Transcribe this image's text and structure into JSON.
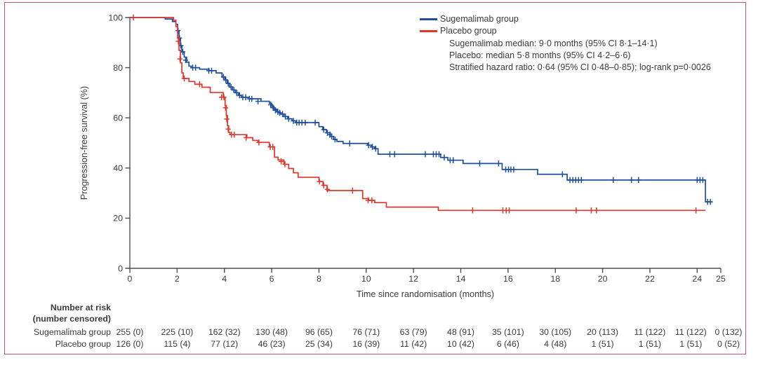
{
  "figure": {
    "border_color": "#c4576f",
    "background": "#ffffff",
    "text_color": "#3b3b3b",
    "axis_color": "#4f4f4f"
  },
  "chart_data": {
    "type": "line",
    "subtype": "kaplan_meier_step",
    "title": "",
    "xlabel": "Time since randomisation (months)",
    "ylabel": "Progression-free survival (%)",
    "xlim": [
      0,
      25
    ],
    "ylim": [
      0,
      100
    ],
    "x_ticks": [
      0,
      2,
      4,
      6,
      8,
      10,
      12,
      14,
      16,
      18,
      20,
      22,
      24,
      25
    ],
    "y_ticks": [
      0,
      20,
      40,
      60,
      80,
      100
    ],
    "grid": false,
    "legend_position": "top-right",
    "legend": [
      {
        "label": "Sugemalimab group",
        "color": "#1f4e9d"
      },
      {
        "label": "Placebo group",
        "color": "#e0372c"
      }
    ],
    "annotations": [
      "Sugemalimab median: 9·0 months (95% CI 8·1–14·1)",
      "Placebo: median 5·8 months (95% CI 4·2–6·6)",
      "Stratified hazard ratio: 0·64 (95% CI 0·48–0·85); log-rank p=0·0026"
    ],
    "series": [
      {
        "name": "Sugemalimab group",
        "color": "#1f4e9d",
        "end_time": 24.62,
        "steps": [
          [
            0,
            100
          ],
          [
            1.5,
            99.4
          ],
          [
            1.8,
            98.4
          ],
          [
            1.95,
            97.3
          ],
          [
            2.02,
            94.8
          ],
          [
            2.08,
            91.8
          ],
          [
            2.14,
            88.8
          ],
          [
            2.2,
            86.3
          ],
          [
            2.3,
            84.2
          ],
          [
            2.4,
            82.2
          ],
          [
            2.5,
            80.6
          ],
          [
            2.6,
            80.0
          ],
          [
            2.95,
            79.4
          ],
          [
            3.35,
            78.8
          ],
          [
            3.65,
            77.9
          ],
          [
            3.9,
            76.3
          ],
          [
            4.02,
            75.1
          ],
          [
            4.12,
            73.7
          ],
          [
            4.22,
            72.3
          ],
          [
            4.34,
            71.1
          ],
          [
            4.46,
            70.0
          ],
          [
            4.6,
            69.0
          ],
          [
            4.72,
            68.2
          ],
          [
            5.05,
            67.6
          ],
          [
            5.55,
            66.6
          ],
          [
            5.9,
            65.8
          ],
          [
            6.0,
            64.6
          ],
          [
            6.1,
            63.4
          ],
          [
            6.22,
            62.4
          ],
          [
            6.36,
            61.5
          ],
          [
            6.52,
            60.5
          ],
          [
            6.68,
            59.6
          ],
          [
            6.86,
            58.8
          ],
          [
            7.02,
            58.1
          ],
          [
            8.0,
            56.5
          ],
          [
            8.16,
            55.3
          ],
          [
            8.32,
            54.0
          ],
          [
            8.48,
            52.6
          ],
          [
            8.62,
            51.4
          ],
          [
            8.76,
            50.6
          ],
          [
            9.02,
            49.8
          ],
          [
            10.06,
            49.1
          ],
          [
            10.22,
            48.4
          ],
          [
            10.36,
            47.7
          ],
          [
            10.5,
            45.5
          ],
          [
            13.15,
            44.2
          ],
          [
            13.45,
            43.1
          ],
          [
            14.1,
            41.8
          ],
          [
            15.75,
            39.4
          ],
          [
            17.25,
            37.5
          ],
          [
            18.5,
            35.2
          ],
          [
            24.35,
            26.5
          ]
        ],
        "censor_marks": [
          [
            2.04,
            94.8
          ],
          [
            2.1,
            91.8
          ],
          [
            2.16,
            88.8
          ],
          [
            2.24,
            86.3
          ],
          [
            2.36,
            83.0
          ],
          [
            2.66,
            80.0
          ],
          [
            2.78,
            80.0
          ],
          [
            3.34,
            78.8
          ],
          [
            3.46,
            78.8
          ],
          [
            3.96,
            76.3
          ],
          [
            4.06,
            75.1
          ],
          [
            4.16,
            73.7
          ],
          [
            4.28,
            72.3
          ],
          [
            4.4,
            71.1
          ],
          [
            4.52,
            70.0
          ],
          [
            4.64,
            69.0
          ],
          [
            4.78,
            68.2
          ],
          [
            4.9,
            68.2
          ],
          [
            5.06,
            67.6
          ],
          [
            5.16,
            67.6
          ],
          [
            5.42,
            66.6
          ],
          [
            5.96,
            65.2
          ],
          [
            6.06,
            64.0
          ],
          [
            6.16,
            63.0
          ],
          [
            6.26,
            62.4
          ],
          [
            6.34,
            62.0
          ],
          [
            6.46,
            61.5
          ],
          [
            6.58,
            60.5
          ],
          [
            6.72,
            59.6
          ],
          [
            6.92,
            58.8
          ],
          [
            7.06,
            58.1
          ],
          [
            7.16,
            58.1
          ],
          [
            7.28,
            58.1
          ],
          [
            7.42,
            58.1
          ],
          [
            7.84,
            58.1
          ],
          [
            8.2,
            55.3
          ],
          [
            8.36,
            54.0
          ],
          [
            8.46,
            53.3
          ],
          [
            8.54,
            52.6
          ],
          [
            8.68,
            51.4
          ],
          [
            9.3,
            49.8
          ],
          [
            10.1,
            49.1
          ],
          [
            10.26,
            48.4
          ],
          [
            10.4,
            47.7
          ],
          [
            11.0,
            45.5
          ],
          [
            11.2,
            45.5
          ],
          [
            12.5,
            45.5
          ],
          [
            12.84,
            45.5
          ],
          [
            12.96,
            45.5
          ],
          [
            13.08,
            45.5
          ],
          [
            13.3,
            44.2
          ],
          [
            13.55,
            43.1
          ],
          [
            13.68,
            43.1
          ],
          [
            14.8,
            41.8
          ],
          [
            15.6,
            41.8
          ],
          [
            15.9,
            39.4
          ],
          [
            16.02,
            39.4
          ],
          [
            16.12,
            39.4
          ],
          [
            16.24,
            39.4
          ],
          [
            18.3,
            37.5
          ],
          [
            18.62,
            35.2
          ],
          [
            18.74,
            35.2
          ],
          [
            18.86,
            35.2
          ],
          [
            18.98,
            35.2
          ],
          [
            19.1,
            35.2
          ],
          [
            20.45,
            35.2
          ],
          [
            21.22,
            35.2
          ],
          [
            21.52,
            35.2
          ],
          [
            24.0,
            35.2
          ],
          [
            24.12,
            35.2
          ],
          [
            24.24,
            35.2
          ],
          [
            24.44,
            26.5
          ],
          [
            24.56,
            26.5
          ]
        ]
      },
      {
        "name": "Placebo group",
        "color": "#e0372c",
        "end_time": 24.35,
        "steps": [
          [
            0,
            100
          ],
          [
            1.85,
            98.9
          ],
          [
            1.95,
            96.4
          ],
          [
            2.02,
            91.9
          ],
          [
            2.08,
            86.9
          ],
          [
            2.14,
            81.9
          ],
          [
            2.2,
            77.9
          ],
          [
            2.26,
            75.7
          ],
          [
            2.5,
            74.5
          ],
          [
            2.75,
            73.4
          ],
          [
            3.05,
            72.2
          ],
          [
            3.4,
            70.1
          ],
          [
            3.95,
            68.2
          ],
          [
            4.03,
            64.9
          ],
          [
            4.08,
            60.9
          ],
          [
            4.13,
            56.9
          ],
          [
            4.18,
            54.2
          ],
          [
            4.24,
            53.3
          ],
          [
            4.95,
            52.1
          ],
          [
            5.2,
            51.0
          ],
          [
            5.42,
            50.2
          ],
          [
            5.9,
            48.4
          ],
          [
            6.12,
            44.3
          ],
          [
            6.27,
            43.2
          ],
          [
            6.52,
            41.5
          ],
          [
            6.72,
            39.8
          ],
          [
            6.92,
            38.1
          ],
          [
            7.12,
            36.3
          ],
          [
            8.0,
            34.6
          ],
          [
            8.17,
            33.1
          ],
          [
            8.34,
            31.0
          ],
          [
            9.85,
            27.8
          ],
          [
            10.1,
            27.1
          ],
          [
            10.36,
            26.2
          ],
          [
            10.85,
            24.4
          ],
          [
            13.05,
            23.1
          ]
        ],
        "censor_marks": [
          [
            0.15,
            100
          ],
          [
            2.05,
            90.5
          ],
          [
            2.12,
            83.5
          ],
          [
            2.3,
            75.7
          ],
          [
            2.95,
            73.4
          ],
          [
            3.88,
            68.2
          ],
          [
            3.98,
            68.2
          ],
          [
            4.05,
            64.0
          ],
          [
            4.1,
            59.5
          ],
          [
            4.16,
            55.5
          ],
          [
            4.3,
            53.3
          ],
          [
            4.42,
            53.3
          ],
          [
            4.92,
            52.1
          ],
          [
            5.46,
            50.2
          ],
          [
            5.94,
            48.4
          ],
          [
            6.05,
            48.4
          ],
          [
            6.4,
            42.6
          ],
          [
            6.56,
            41.5
          ],
          [
            8.02,
            34.6
          ],
          [
            8.2,
            33.1
          ],
          [
            8.36,
            31.5
          ],
          [
            9.42,
            31.0
          ],
          [
            10.08,
            27.1
          ],
          [
            10.24,
            27.1
          ],
          [
            14.5,
            23.1
          ],
          [
            15.78,
            23.1
          ],
          [
            15.92,
            23.1
          ],
          [
            16.05,
            23.1
          ],
          [
            18.88,
            23.1
          ],
          [
            19.52,
            23.1
          ],
          [
            19.74,
            23.1
          ],
          [
            23.95,
            23.1
          ]
        ]
      }
    ]
  },
  "risk_table": {
    "title_line1": "Number at risk",
    "title_line2": "(number censored)",
    "times": [
      0,
      2,
      4,
      6,
      8,
      10,
      12,
      14,
      16,
      18,
      20,
      22,
      24,
      25
    ],
    "rows": [
      {
        "label": "Sugemalimab group",
        "values": [
          "255 (0)",
          "225 (10)",
          "162 (32)",
          "130 (48)",
          "96 (65)",
          "76 (71)",
          "63 (79)",
          "48 (91)",
          "35 (101)",
          "30 (105)",
          "20 (113)",
          "11 (122)",
          "11 (122)",
          "0 (132)"
        ]
      },
      {
        "label": "Placebo group",
        "values": [
          "126 (0)",
          "115 (4)",
          "77 (12)",
          "46 (23)",
          "25 (34)",
          "16 (39)",
          "11 (42)",
          "10 (42)",
          "6 (46)",
          "4 (48)",
          "1 (51)",
          "1 (51)",
          "1 (51)",
          "0 (52)"
        ]
      }
    ]
  }
}
